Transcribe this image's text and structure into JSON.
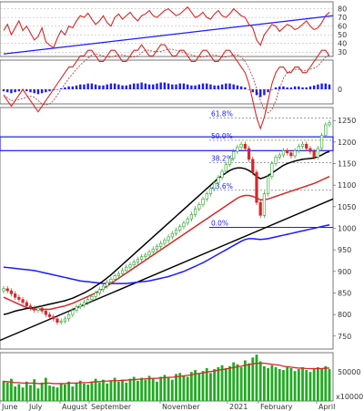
{
  "colors": {
    "background": "#ffffff",
    "price_up": "#2ca02c",
    "price_down": "#d62728",
    "ma_black": "#000000",
    "ma_red": "#d62728",
    "ma_blue": "#1a1aff",
    "trendline_blue": "#1a1aff",
    "trendline_black": "#000000",
    "rsi_line": "#d62728",
    "macd_hist": "#1a1aff",
    "volume_bar": "#22aa22",
    "volume_ma": "#d62728",
    "grid": "#aaaaaa",
    "fib": "#1a1aff",
    "box": "#1a1aff"
  },
  "chart_data": [
    {
      "type": "line",
      "panel": "rsi",
      "yticks": [
        30,
        40,
        50,
        60,
        70,
        80
      ],
      "ylim": [
        25,
        88
      ],
      "overbought": 70,
      "oversold": 30,
      "mid": 50,
      "values": [
        55,
        62,
        50,
        58,
        66,
        55,
        60,
        52,
        44,
        48,
        58,
        42,
        38,
        35,
        46,
        55,
        50,
        60,
        58,
        66,
        72,
        70,
        75,
        68,
        62,
        66,
        72,
        64,
        60,
        70,
        74,
        68,
        72,
        76,
        70,
        66,
        72,
        74,
        78,
        72,
        70,
        74,
        78,
        80,
        76,
        72,
        74,
        78,
        82,
        76,
        70,
        72,
        76,
        70,
        68,
        74,
        78,
        72,
        70,
        74,
        80,
        76,
        72,
        70,
        62,
        58,
        44,
        38,
        50,
        56,
        62,
        60,
        54,
        58,
        62,
        60,
        56,
        58,
        62,
        66,
        60,
        56,
        58,
        64,
        72,
        76
      ]
    },
    {
      "type": "bar",
      "panel": "macd",
      "y_label": "0",
      "histogram": [
        -2,
        -3,
        -4,
        -3,
        -2,
        -1,
        -2,
        -3,
        -4,
        -5,
        -4,
        -3,
        -2,
        -1,
        0,
        1,
        2,
        3,
        3,
        4,
        5,
        5,
        6,
        6,
        5,
        4,
        4,
        5,
        6,
        6,
        5,
        4,
        4,
        5,
        6,
        6,
        7,
        6,
        5,
        5,
        6,
        7,
        7,
        6,
        5,
        5,
        6,
        6,
        5,
        4,
        4,
        5,
        6,
        6,
        5,
        4,
        4,
        5,
        6,
        6,
        5,
        4,
        3,
        2,
        0,
        -3,
        -6,
        -8,
        -6,
        -3,
        0,
        2,
        3,
        3,
        2,
        2,
        3,
        3,
        2,
        2,
        3,
        4,
        5,
        6,
        6,
        5
      ]
    },
    {
      "type": "candlestick",
      "panel": "price",
      "x_ticks": [
        "June",
        "July",
        "August",
        "September",
        "November",
        "2021",
        "February",
        "April"
      ],
      "y_ticks": [
        750,
        800,
        850,
        900,
        950,
        1000,
        1050,
        1100,
        1150,
        1200,
        1250
      ],
      "ylim": [
        720,
        1280
      ],
      "fib_levels": [
        {
          "label": "61.8%",
          "value": 1256
        },
        {
          "label": "50.0%",
          "value": 1204
        },
        {
          "label": "38.2%",
          "value": 1152
        },
        {
          "label": "23.6%",
          "value": 1088
        },
        {
          "label": "0.0%",
          "value": 1002
        }
      ],
      "resistance_box": {
        "top": 1212,
        "bottom": 1180
      },
      "close": [
        860,
        855,
        848,
        840,
        835,
        828,
        820,
        815,
        810,
        815,
        808,
        800,
        795,
        790,
        782,
        785,
        790,
        800,
        810,
        818,
        822,
        828,
        835,
        842,
        850,
        858,
        866,
        875,
        882,
        890,
        895,
        902,
        910,
        915,
        922,
        928,
        934,
        938,
        945,
        952,
        958,
        965,
        972,
        980,
        988,
        996,
        1004,
        1012,
        1022,
        1032,
        1045,
        1055,
        1068,
        1080,
        1092,
        1105,
        1118,
        1132,
        1148,
        1162,
        1178,
        1188,
        1195,
        1185,
        1160,
        1130,
        1060,
        1030,
        1080,
        1120,
        1150,
        1165,
        1170,
        1180,
        1175,
        1168,
        1180,
        1190,
        1195,
        1185,
        1178,
        1165,
        1185,
        1215,
        1240,
        1245
      ],
      "ma_black": [
        800,
        802,
        805,
        808,
        810,
        812,
        814,
        815,
        816,
        818,
        820,
        822,
        824,
        826,
        828,
        830,
        832,
        835,
        838,
        842,
        846,
        850,
        855,
        860,
        866,
        872,
        878,
        885,
        892,
        900,
        908,
        916,
        924,
        932,
        940,
        948,
        956,
        964,
        972,
        980,
        988,
        996,
        1004,
        1012,
        1020,
        1028,
        1036,
        1044,
        1052,
        1060,
        1068,
        1076,
        1084,
        1092,
        1100,
        1108,
        1116,
        1122,
        1128,
        1134,
        1138,
        1140,
        1140,
        1138,
        1134,
        1128,
        1120,
        1115,
        1118,
        1122,
        1128,
        1134,
        1140,
        1146,
        1150,
        1153,
        1156,
        1158,
        1160,
        1161,
        1162,
        1163,
        1166,
        1170,
        1175,
        1178
      ],
      "ma_red": [
        840,
        836,
        832,
        828,
        824,
        820,
        816,
        814,
        812,
        812,
        812,
        812,
        812,
        814,
        816,
        818,
        820,
        823,
        826,
        830,
        834,
        838,
        842,
        846,
        850,
        855,
        860,
        866,
        872,
        878,
        884,
        890,
        896,
        902,
        908,
        914,
        920,
        926,
        932,
        938,
        944,
        950,
        956,
        962,
        968,
        974,
        980,
        986,
        992,
        998,
        1004,
        1010,
        1016,
        1022,
        1028,
        1034,
        1040,
        1046,
        1052,
        1058,
        1064,
        1070,
        1074,
        1076,
        1076,
        1074,
        1070,
        1066,
        1066,
        1068,
        1071,
        1074,
        1077,
        1080,
        1083,
        1086,
        1089,
        1092,
        1095,
        1098,
        1101,
        1104,
        1108,
        1112,
        1116,
        1120
      ],
      "ma_blue": [
        910,
        909,
        908,
        907,
        906,
        905,
        904,
        903,
        902,
        900,
        898,
        896,
        894,
        892,
        890,
        888,
        886,
        884,
        882,
        880,
        878,
        877,
        876,
        875,
        874,
        873,
        872,
        872,
        872,
        872,
        872,
        872,
        872,
        873,
        874,
        875,
        876,
        877,
        878,
        880,
        882,
        884,
        886,
        888,
        891,
        894,
        897,
        900,
        904,
        908,
        912,
        916,
        920,
        925,
        930,
        935,
        940,
        945,
        950,
        955,
        960,
        965,
        970,
        974,
        976,
        976,
        975,
        974,
        975,
        976,
        978,
        980,
        982,
        984,
        986,
        988,
        990,
        992,
        994,
        996,
        998,
        1000,
        1002,
        1004,
        1006,
        1008
      ]
    },
    {
      "type": "bar",
      "panel": "volume",
      "y_ticks": [
        50000
      ],
      "unit_label": "x10000",
      "values": [
        42,
        38,
        46,
        30,
        35,
        28,
        40,
        33,
        45,
        26,
        38,
        48,
        32,
        30,
        28,
        36,
        34,
        40,
        30,
        38,
        42,
        36,
        34,
        40,
        46,
        38,
        44,
        36,
        42,
        48,
        40,
        44,
        38,
        46,
        50,
        42,
        48,
        44,
        52,
        46,
        40,
        50,
        54,
        48,
        44,
        56,
        58,
        52,
        50,
        60,
        64,
        56,
        62,
        68,
        58,
        66,
        70,
        74,
        68,
        72,
        80,
        76,
        70,
        84,
        78,
        90,
        96,
        82,
        72,
        68,
        74,
        70,
        66,
        64,
        70,
        68,
        62,
        66,
        70,
        64,
        60,
        66,
        70,
        68,
        72,
        66
      ],
      "ma": [
        40,
        40,
        39,
        38,
        38,
        37,
        37,
        37,
        37,
        36,
        36,
        37,
        37,
        36,
        36,
        36,
        36,
        37,
        37,
        37,
        38,
        38,
        38,
        39,
        40,
        40,
        41,
        41,
        42,
        42,
        42,
        43,
        43,
        44,
        44,
        45,
        45,
        46,
        46,
        47,
        47,
        48,
        48,
        49,
        49,
        50,
        51,
        52,
        53,
        54,
        56,
        57,
        58,
        60,
        61,
        62,
        64,
        65,
        66,
        68,
        69,
        71,
        72,
        74,
        75,
        77,
        78,
        78,
        78,
        77,
        76,
        75,
        74,
        72,
        71,
        70,
        69,
        68,
        68,
        67,
        67,
        67,
        67,
        67,
        68,
        68
      ]
    }
  ]
}
